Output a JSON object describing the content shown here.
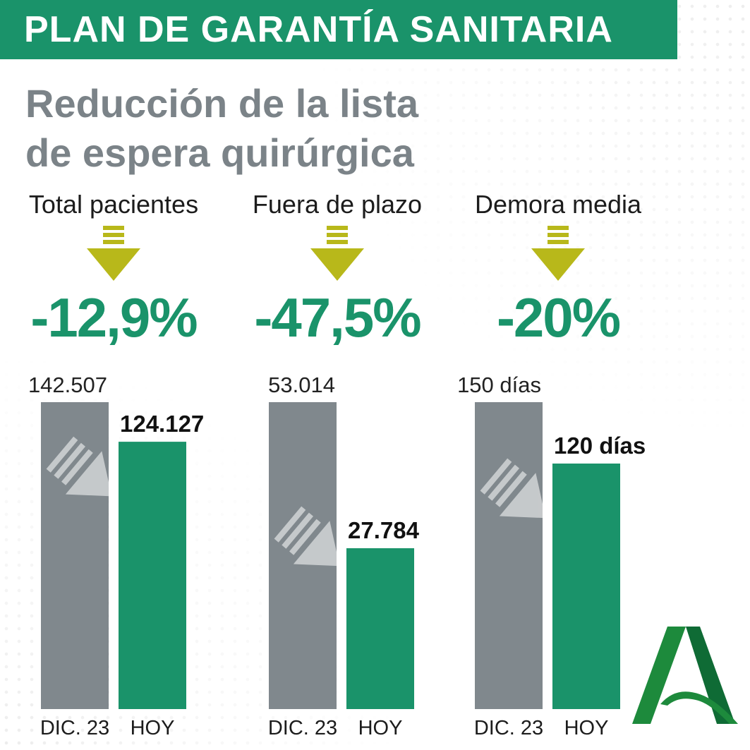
{
  "header": {
    "title": "PLAN DE GARANTÍA SANITARIA"
  },
  "subtitle": {
    "line1": "Reducción de la lista",
    "line2": "de espera quirúrgica"
  },
  "metrics": [
    {
      "label": "Total pacientes",
      "change": "-12,9%"
    },
    {
      "label": "Fuera de plazo",
      "change": "-47,5%"
    },
    {
      "label": "Demora media",
      "change": "-20%"
    }
  ],
  "colors": {
    "brand_green": "#1a936a",
    "bar_grey": "#80888d",
    "arrow_olive": "#b8b81a",
    "title_grey": "#7b8388"
  },
  "chart_data": [
    {
      "type": "bar",
      "categories": [
        "DIC. 23",
        "HOY"
      ],
      "values": [
        142507,
        124127
      ],
      "value_labels": [
        "142.507",
        "124.127"
      ],
      "unit": ""
    },
    {
      "type": "bar",
      "categories": [
        "DIC. 23",
        "HOY"
      ],
      "values": [
        53014,
        27784
      ],
      "value_labels": [
        "53.014",
        "27.784"
      ],
      "unit": ""
    },
    {
      "type": "bar",
      "categories": [
        "DIC. 23",
        "HOY"
      ],
      "values": [
        150,
        120
      ],
      "value_labels": [
        "150 días",
        "120 días"
      ],
      "unit": "días"
    }
  ],
  "logo": {
    "icon": "junta-andalucia-logo"
  }
}
